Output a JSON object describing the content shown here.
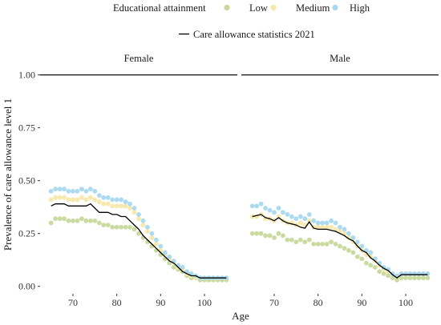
{
  "chart_data": {
    "type": "scatter",
    "xlabel": "Age",
    "ylabel": "Prevalence of care allowance level 1",
    "xlim": [
      62.5,
      107.5
    ],
    "ylim": [
      -0.02,
      1.04
    ],
    "xticks": [
      70,
      80,
      90,
      100
    ],
    "yticks": [
      0.0,
      0.25,
      0.5,
      0.75,
      1.0
    ],
    "ytick_labels": [
      "0.00",
      "0.25",
      "0.50",
      "0.75",
      "1.00"
    ],
    "grid": false,
    "reference_line": 1.0,
    "legend_points": {
      "title": "Educational attainment",
      "placement": "top",
      "entries": [
        {
          "label": "Low",
          "color": "#c8d99a"
        },
        {
          "label": "Medium",
          "color": "#f6e8a6"
        },
        {
          "label": "High",
          "color": "#a6d8f0"
        }
      ]
    },
    "legend_line": {
      "label": "Care allowance statistics 2021",
      "color": "#000000"
    },
    "ages": [
      65,
      66,
      67,
      68,
      69,
      70,
      71,
      72,
      73,
      74,
      75,
      76,
      77,
      78,
      79,
      80,
      81,
      82,
      83,
      84,
      85,
      86,
      87,
      88,
      89,
      90,
      91,
      92,
      93,
      94,
      95,
      96,
      97,
      98,
      99,
      100,
      101,
      102,
      103,
      104,
      105
    ],
    "panels": [
      {
        "name": "Female",
        "series": [
          {
            "name": "Low",
            "color": "#c8d99a",
            "values": [
              0.3,
              0.32,
              0.32,
              0.32,
              0.31,
              0.31,
              0.31,
              0.32,
              0.31,
              0.31,
              0.31,
              0.3,
              0.29,
              0.29,
              0.28,
              0.28,
              0.28,
              0.28,
              0.28,
              0.27,
              0.25,
              0.23,
              0.21,
              0.19,
              0.17,
              0.15,
              0.13,
              0.11,
              0.09,
              0.08,
              0.07,
              0.05,
              0.04,
              0.04,
              0.03,
              0.03,
              0.03,
              0.03,
              0.03,
              0.03,
              0.03
            ]
          },
          {
            "name": "Medium",
            "color": "#f6e8a6",
            "values": [
              0.41,
              0.42,
              0.42,
              0.42,
              0.41,
              0.41,
              0.41,
              0.42,
              0.41,
              0.42,
              0.41,
              0.4,
              0.39,
              0.39,
              0.38,
              0.38,
              0.38,
              0.38,
              0.37,
              0.35,
              0.32,
              0.29,
              0.26,
              0.23,
              0.2,
              0.17,
              0.15,
              0.13,
              0.11,
              0.09,
              0.08,
              0.06,
              0.05,
              0.04,
              0.04,
              0.04,
              0.04,
              0.04,
              0.04,
              0.04,
              0.04
            ]
          },
          {
            "name": "High",
            "color": "#a6d8f0",
            "values": [
              0.45,
              0.46,
              0.46,
              0.46,
              0.45,
              0.45,
              0.45,
              0.46,
              0.45,
              0.46,
              0.45,
              0.43,
              0.42,
              0.42,
              0.41,
              0.41,
              0.41,
              0.4,
              0.39,
              0.37,
              0.34,
              0.31,
              0.28,
              0.25,
              0.22,
              0.19,
              0.16,
              0.14,
              0.12,
              0.1,
              0.09,
              0.07,
              0.06,
              0.05,
              0.04,
              0.04,
              0.04,
              0.04,
              0.04,
              0.04,
              0.04
            ]
          }
        ],
        "statistics_line": [
          0.38,
          0.39,
          0.39,
          0.39,
          0.38,
          0.38,
          0.38,
          0.38,
          0.38,
          0.39,
          0.37,
          0.35,
          0.35,
          0.35,
          0.34,
          0.34,
          0.33,
          0.33,
          0.31,
          0.29,
          0.27,
          0.24,
          0.22,
          0.2,
          0.18,
          0.16,
          0.14,
          0.12,
          0.11,
          0.09,
          0.07,
          0.06,
          0.05,
          0.05,
          0.04,
          0.04,
          0.04,
          0.04,
          0.04,
          0.04,
          0.04
        ]
      },
      {
        "name": "Male",
        "series": [
          {
            "name": "Low",
            "color": "#c8d99a",
            "values": [
              0.25,
              0.25,
              0.25,
              0.24,
              0.24,
              0.23,
              0.25,
              0.24,
              0.22,
              0.22,
              0.21,
              0.22,
              0.21,
              0.22,
              0.2,
              0.2,
              0.2,
              0.2,
              0.21,
              0.2,
              0.19,
              0.18,
              0.17,
              0.16,
              0.14,
              0.13,
              0.11,
              0.1,
              0.09,
              0.07,
              0.06,
              0.05,
              0.04,
              0.03,
              0.04,
              0.04,
              0.04,
              0.04,
              0.04,
              0.04,
              0.04
            ]
          },
          {
            "name": "Medium",
            "color": "#f6e8a6",
            "values": [
              0.33,
              0.33,
              0.34,
              0.32,
              0.32,
              0.31,
              0.33,
              0.31,
              0.3,
              0.3,
              0.29,
              0.3,
              0.29,
              0.31,
              0.28,
              0.28,
              0.28,
              0.28,
              0.28,
              0.27,
              0.26,
              0.25,
              0.23,
              0.21,
              0.19,
              0.17,
              0.15,
              0.14,
              0.12,
              0.1,
              0.08,
              0.07,
              0.06,
              0.05,
              0.06,
              0.06,
              0.06,
              0.06,
              0.06,
              0.06,
              0.06
            ]
          },
          {
            "name": "High",
            "color": "#a6d8f0",
            "values": [
              0.38,
              0.38,
              0.39,
              0.37,
              0.36,
              0.35,
              0.37,
              0.35,
              0.34,
              0.33,
              0.32,
              0.33,
              0.32,
              0.34,
              0.31,
              0.3,
              0.3,
              0.3,
              0.31,
              0.3,
              0.28,
              0.27,
              0.25,
              0.23,
              0.21,
              0.19,
              0.17,
              0.16,
              0.13,
              0.11,
              0.09,
              0.08,
              0.06,
              0.05,
              0.06,
              0.06,
              0.06,
              0.06,
              0.06,
              0.06,
              0.06
            ]
          }
        ],
        "statistics_line": [
          0.33,
          0.335,
          0.34,
          0.325,
          0.32,
          0.31,
          0.325,
          0.31,
          0.3,
          0.295,
          0.29,
          0.28,
          0.275,
          0.305,
          0.275,
          0.27,
          0.27,
          0.27,
          0.265,
          0.26,
          0.25,
          0.24,
          0.225,
          0.215,
          0.19,
          0.17,
          0.16,
          0.135,
          0.12,
          0.1,
          0.085,
          0.075,
          0.055,
          0.04,
          0.055,
          0.055,
          0.055,
          0.055,
          0.055,
          0.055,
          0.055
        ]
      }
    ]
  }
}
